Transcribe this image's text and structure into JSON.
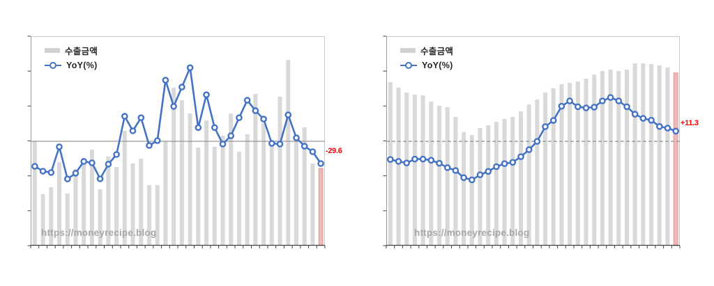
{
  "page": {
    "background": "#ffffff"
  },
  "watermark": "https://moneyrecipe.blog",
  "legend": {
    "bar_label": "수출금액",
    "line_label": "YoY(%)"
  },
  "colors": {
    "bar": "#d9d9d9",
    "bar_highlight_fill": "#eabab8",
    "bar_highlight_edge": "#dd918e",
    "line": "#4472c4",
    "marker_fill": "#ffffff",
    "zero_line": "#8c8c8c",
    "annotation": "#ff0000",
    "watermark": "#a8a8a8",
    "plot_border": "#c8c8c8",
    "axis": "#404040",
    "legend_text": "#262626"
  },
  "chart_data": [
    {
      "type": "bar",
      "title": "",
      "n_points": 36,
      "categories_note": "36 evenly spaced periods; axis tick labels not legible in image",
      "legend": [
        "수출금액",
        "YoY(%)"
      ],
      "legend_position": "top-left",
      "grid": false,
      "zero_line_style": "solid",
      "yoy_axis": [
        -139,
        140
      ],
      "highlight_last_bar": true,
      "annotation": {
        "text": "-29.6",
        "series": "YoY(%)",
        "point_index": 36,
        "value": -29.6
      },
      "series": [
        {
          "name": "수출금액",
          "type": "bar",
          "unit": "relative bar height, % of plot area (value axis unlabeled)",
          "values": [
            49.8,
            24.6,
            27.9,
            39.9,
            24.9,
            36.5,
            41.9,
            45.8,
            26.9,
            42.5,
            37.5,
            54.8,
            39.2,
            41.5,
            28.9,
            28.9,
            49.8,
            75.4,
            69.4,
            63.1,
            46.8,
            59.8,
            47.2,
            52.5,
            63.1,
            44.9,
            53.2,
            72.4,
            58.5,
            49.8,
            71.1,
            88.7,
            50.5,
            56.5,
            39.2,
            36.9
          ]
        },
        {
          "name": "YoY(%)",
          "type": "line",
          "unit": "%",
          "values": [
            -33.3,
            -39.8,
            -41.6,
            -7.4,
            -50.2,
            -42.5,
            -26.8,
            -28.7,
            -50.0,
            -30.5,
            -17.6,
            33.3,
            13.9,
            31.4,
            -5.6,
            0.9,
            81.4,
            46.5,
            72.2,
            98.0,
            18.2,
            62.0,
            18.2,
            -3.7,
            7.4,
            31.4,
            54.6,
            40.7,
            29.6,
            -2.8,
            -3.7,
            35.2,
            4.6,
            -6.5,
            -13.9,
            -29.6
          ]
        }
      ]
    },
    {
      "type": "bar",
      "title": "",
      "n_points": 36,
      "categories_note": "36 evenly spaced periods; axis tick labels not legible in image",
      "legend": [
        "수출금액",
        "YoY(%)"
      ],
      "legend_position": "top-left",
      "grid": false,
      "zero_line_style": "dashed",
      "yoy_axis": [
        -115,
        116
      ],
      "highlight_last_bar": true,
      "annotation": {
        "text": "+11.3",
        "series": "YoY(%)",
        "point_index": 36,
        "value": 11.3
      },
      "series": [
        {
          "name": "수출금액",
          "type": "bar",
          "unit": "relative bar height, % of plot area (value axis unlabeled)",
          "values": [
            78.1,
            75.4,
            73.1,
            72.1,
            71.8,
            68.8,
            66.8,
            66.1,
            61.5,
            54.2,
            52.8,
            56.1,
            57.5,
            59.1,
            60.5,
            61.5,
            64.1,
            67.4,
            69.8,
            73.1,
            75.1,
            77.1,
            77.7,
            78.4,
            79.7,
            81.7,
            83.4,
            84.1,
            83.4,
            84.1,
            87.0,
            87.0,
            86.7,
            86.0,
            85.0,
            82.5
          ]
        },
        {
          "name": "YoY(%)",
          "type": "line",
          "unit": "%",
          "values": [
            -20.0,
            -22.1,
            -23.8,
            -19.5,
            -19.5,
            -20.8,
            -24.1,
            -29.0,
            -32.1,
            -40.0,
            -42.5,
            -36.9,
            -33.1,
            -27.9,
            -24.6,
            -23.1,
            -16.9,
            -9.2,
            0.0,
            16.2,
            23.1,
            38.7,
            44.6,
            38.2,
            36.9,
            37.7,
            44.6,
            48.4,
            44.6,
            38.2,
            30.0,
            25.4,
            23.3,
            16.4,
            14.6,
            11.3
          ]
        }
      ]
    }
  ]
}
